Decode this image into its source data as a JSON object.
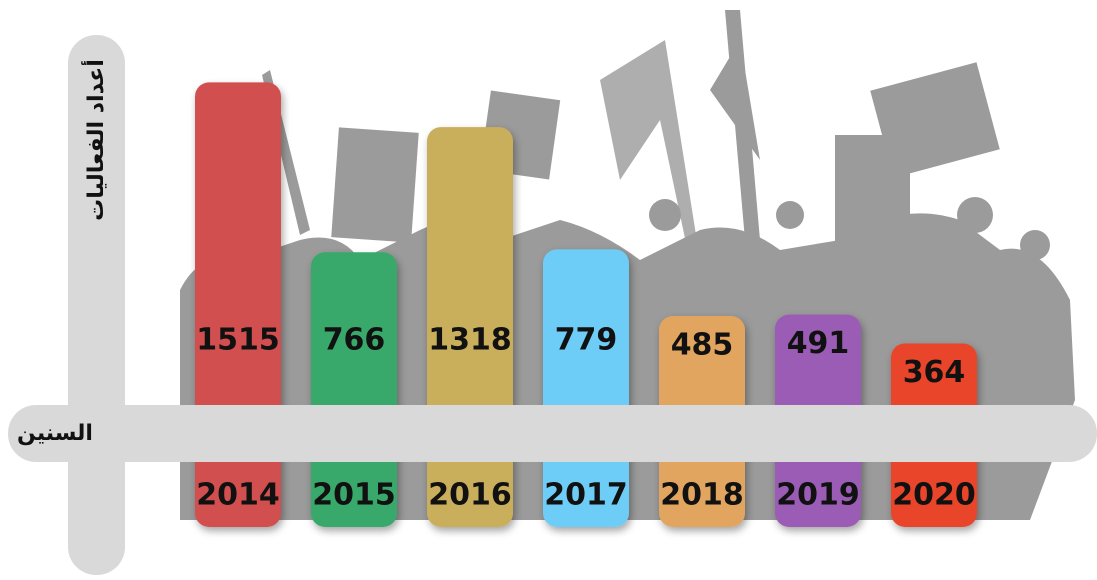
{
  "chart_data": {
    "type": "bar",
    "y_label": "أعداد الفعاليات",
    "x_label": "السنين",
    "categories": [
      "2014",
      "2015",
      "2016",
      "2017",
      "2018",
      "2019",
      "2020"
    ],
    "values": [
      1515,
      766,
      1318,
      779,
      485,
      491,
      364
    ],
    "colors": [
      "#d24f4f",
      "#38a96b",
      "#c9ae5b",
      "#6dcdf6",
      "#e1a55e",
      "#9b5bb5",
      "#e8452b"
    ]
  }
}
